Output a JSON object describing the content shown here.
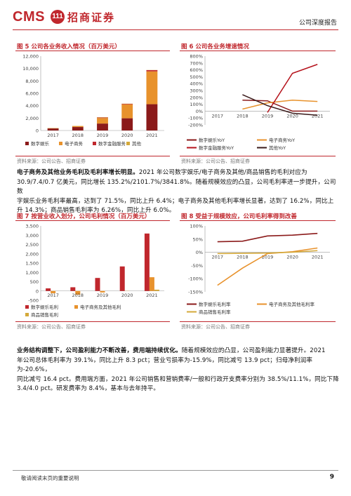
{
  "header": {
    "logo_text": "CMS",
    "logo_badge": "111",
    "logo_cn": "招商证券",
    "report_type": "公司深度报告"
  },
  "figures": [
    {
      "title": "图 5 公司各业务收入情况（百万美元）",
      "source": "资料来源：公司公告、招商证券"
    },
    {
      "title": "图 6 公司各业务增速情况",
      "source": "资料来源：公司公告、招商证券"
    },
    {
      "title": "图 7 按营业收入划分，公司毛利情况（百万美元）",
      "source": "资料来源：公司公告、招商证券"
    },
    {
      "title": "图 8 受益于规模效应，公司毛利率得到改善",
      "source": "资料来源：公司公告、招商证券"
    }
  ],
  "paragraph1": {
    "bold": "电子商务及其他业务毛利及毛利率增长明显。",
    "lines": [
      "2021 年公司数字娱乐/电子商务及其他/商品销售的毛利对应为",
      "30.9/7.4/0.7 亿美元，同比增长 135.2%/2101.7%/3841.8%。随着规模效应的凸显，公司毛利率进一步提升，公司数",
      "字娱乐业务毛利率最高，达到了 71.5%，同比上升 6.4%；电子商务及其他毛利率增长显著，达到了 16.2%，同比上",
      "升 14.3%；商品销售毛利率为 6.26%，同比上升 6.0%。"
    ]
  },
  "paragraph2": {
    "bold": "业务结构调整下，公司盈利能力不断改善，费用端持续优化。",
    "lines": [
      "随着规模效应的凸显，公司盈利能力显著提升。2021",
      "年公司总体毛利率为 39.1%，同比上升 8.3 pct；营业亏损率为-15.9%，同比减亏 13.9 pct；归母净利润率为-20.6%，",
      "同比减亏 16.4 pct。费用端方面，2021 年公司销售和营销费率/一般和行政开支费率分别为 38.5%/11.1%，同比下降",
      "3.4/4.0 pct。研发费率为 8.4%，基本与去年持平。"
    ]
  },
  "footer": {
    "disclaimer": "敬请阅读末页的重要说明",
    "page_number": "9"
  },
  "colors": {
    "dark_red": "#8b1a1a",
    "red": "#c0272d",
    "orange": "#e8922c",
    "gold": "#d4a93a",
    "crimson": "#b5121b"
  },
  "chart_data": [
    {
      "type": "bar",
      "stacked": true,
      "categories": [
        "2017",
        "2018",
        "2019",
        "2020",
        "2021"
      ],
      "series": [
        {
          "name": "数字娱乐",
          "color": "#8b1a1a",
          "values": [
            330,
            560,
            1120,
            1970,
            4240
          ]
        },
        {
          "name": "电子商务",
          "color": "#e8922c",
          "values": [
            50,
            160,
            890,
            2250,
            5300
          ]
        },
        {
          "name": "数字金融服务",
          "color": "#c0272d",
          "values": [
            0,
            0,
            80,
            80,
            200
          ]
        },
        {
          "name": "其他",
          "color": "#d4a93a",
          "values": [
            20,
            20,
            50,
            30,
            20
          ]
        }
      ],
      "ylim": [
        0,
        12000
      ],
      "yticks": [
        "0",
        "2,000",
        "4,000",
        "6,000",
        "8,000",
        "10,000",
        "12,000"
      ],
      "legend_position": "bottom"
    },
    {
      "type": "line",
      "categories": [
        "2017",
        "2018",
        "2019",
        "2020",
        "2021"
      ],
      "series": [
        {
          "name": "数字娱乐YoY",
          "color": "#8b1a1a",
          "values": [
            null,
            160,
            150,
            0,
            0
          ]
        },
        {
          "name": "电子商务YoY",
          "color": "#e8922c",
          "values": [
            null,
            30,
            120,
            160,
            140
          ]
        },
        {
          "name": "数字金融服务YoY",
          "color": "#b5121b",
          "values": [
            null,
            null,
            -20,
            550,
            680
          ]
        },
        {
          "name": "其他YoY",
          "color": "#3a1a1a",
          "values": [
            null,
            240,
            80,
            -30,
            -60
          ]
        }
      ],
      "ylim": [
        -200,
        800
      ],
      "yticks": [
        "-200%",
        "-100%",
        "0%",
        "100%",
        "200%",
        "300%",
        "400%",
        "500%",
        "600%",
        "700%",
        "800%"
      ],
      "legend_position": "bottom"
    },
    {
      "type": "bar",
      "categories": [
        "2017",
        "2018",
        "2019",
        "2020",
        "2021"
      ],
      "series": [
        {
          "name": "数字娱乐毛利",
          "color": "#c0272d",
          "values": [
            140,
            200,
            700,
            1320,
            3090
          ]
        },
        {
          "name": "电子商务及其他毛利",
          "color": "#e8922c",
          "values": [
            -120,
            -200,
            -80,
            -10,
            740
          ]
        },
        {
          "name": "商品销售毛利",
          "color": "#d4a93a",
          "values": [
            0,
            0,
            0,
            0,
            70
          ]
        }
      ],
      "ylim": [
        -500,
        3500
      ],
      "yticks": [
        "-500",
        "0",
        "500",
        "1,000",
        "1,500",
        "2,000",
        "2,500",
        "3,000",
        "3,500"
      ],
      "legend_position": "bottom"
    },
    {
      "type": "line",
      "categories": [
        "2017",
        "2018",
        "2019",
        "2020",
        "2021"
      ],
      "series": [
        {
          "name": "数字娱乐毛利率",
          "color": "#8b1a1a",
          "values": [
            40,
            42,
            62,
            65,
            71.5
          ]
        },
        {
          "name": "电子商务及其他毛利率",
          "color": "#e8922c",
          "values": [
            -125,
            -60,
            -5,
            2,
            16.2
          ]
        },
        {
          "name": "商品销售毛利率",
          "color": "#d4a93a",
          "values": [
            -5,
            -4,
            -3,
            0.3,
            6.26
          ]
        }
      ],
      "ylim": [
        -150,
        100
      ],
      "yticks": [
        "-150%",
        "-100%",
        "-50%",
        "0%",
        "50%",
        "100%"
      ],
      "legend_position": "bottom"
    }
  ]
}
